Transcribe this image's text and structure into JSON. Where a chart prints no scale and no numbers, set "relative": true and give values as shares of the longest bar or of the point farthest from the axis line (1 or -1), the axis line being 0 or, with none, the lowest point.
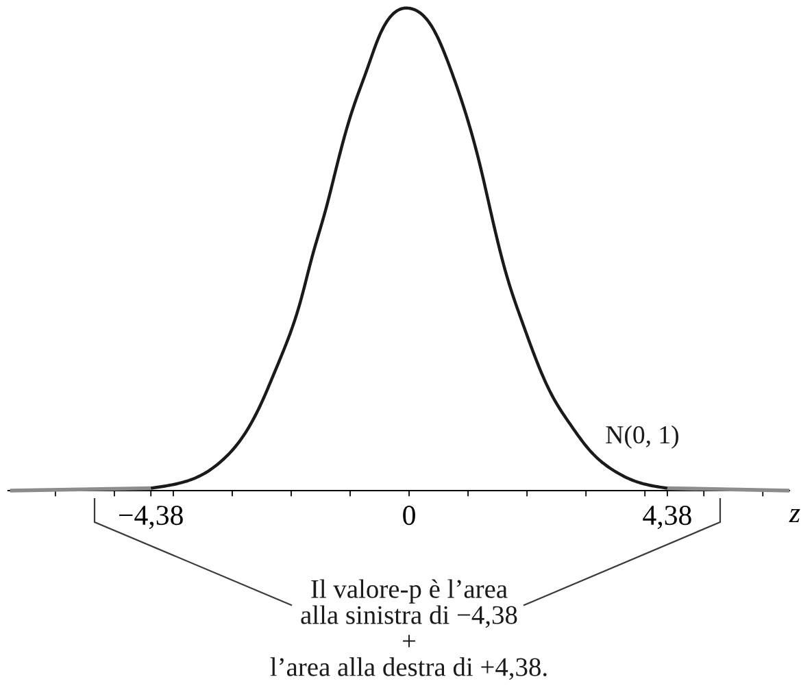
{
  "chart_data": {
    "type": "line",
    "relative": true,
    "xlabel": "z",
    "marker": "none",
    "line_style": "solid",
    "annotations": [
      "Il valore-p è l’area\nalla sinistra di −4,38\n+\nl’area alla destra di +4,38."
    ],
    "xlim": [
      -6.8,
      6.45
    ],
    "xticks": [
      {
        "value": -6,
        "label": null
      },
      {
        "value": -5,
        "label": null
      },
      {
        "value": -4.38,
        "label": "−4,38"
      },
      {
        "value": -4,
        "label": null
      },
      {
        "value": -3,
        "label": null
      },
      {
        "value": -2,
        "label": null
      },
      {
        "value": -1,
        "label": null
      },
      0,
      {
        "value": 1,
        "label": null
      },
      {
        "value": 2,
        "label": null
      },
      {
        "value": 3,
        "label": null
      },
      {
        "value": 4,
        "label": null
      },
      {
        "value": 4.38,
        "label": "4,38"
      },
      {
        "value": 5,
        "label": null
      },
      {
        "value": 6,
        "label": null
      }
    ],
    "series": [
      {
        "color": "#8c8c8c",
        "x": [
          -6.77,
          -4.38
        ],
        "values": [
          0,
          0.005
        ]
      },
      {
        "name": "N(0, 1)",
        "color": "#1a1a1a",
        "x": [
          -4.38,
          -3.91,
          -3.48,
          -3.15,
          -2.83,
          -2.5,
          -2.29,
          -2.07,
          -1.85,
          -1.64,
          -1.42,
          -1.2,
          -0.99,
          -0.72,
          -0.5,
          -0.17,
          0,
          0.22,
          0.41,
          0.73,
          1.0,
          1.22,
          1.43,
          1.65,
          1.92,
          2.14,
          2.4,
          2.73,
          3.06,
          3.44,
          3.87,
          4.38
        ],
        "values": [
          0.005,
          0.015,
          0.035,
          0.065,
          0.11,
          0.183,
          0.243,
          0.309,
          0.389,
          0.487,
          0.58,
          0.686,
          0.778,
          0.871,
          0.944,
          0.997,
          1,
          0.987,
          0.957,
          0.865,
          0.766,
          0.666,
          0.554,
          0.448,
          0.349,
          0.276,
          0.203,
          0.138,
          0.084,
          0.044,
          0.018,
          0.005
        ]
      },
      {
        "color": "#8c8c8c",
        "x": [
          4.38,
          6.45
        ],
        "values": [
          0.005,
          0
        ]
      }
    ]
  }
}
